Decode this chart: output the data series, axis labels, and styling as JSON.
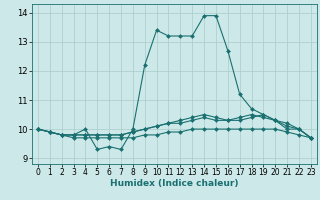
{
  "title": "",
  "xlabel": "Humidex (Indice chaleur)",
  "ylabel": "",
  "bg_color": "#cce8e8",
  "line_color": "#1a7070",
  "grid_color": "#aacccc",
  "xlim": [
    -0.5,
    23.5
  ],
  "ylim": [
    8.8,
    14.3
  ],
  "yticks": [
    9,
    10,
    11,
    12,
    13,
    14
  ],
  "xticks": [
    0,
    1,
    2,
    3,
    4,
    5,
    6,
    7,
    8,
    9,
    10,
    11,
    12,
    13,
    14,
    15,
    16,
    17,
    18,
    19,
    20,
    21,
    22,
    23
  ],
  "series": [
    {
      "x": [
        0,
        1,
        2,
        3,
        4,
        5,
        6,
        7,
        8,
        9,
        10,
        11,
        12,
        13,
        14,
        15,
        16,
        17,
        18,
        19,
        20,
        21,
        22,
        23
      ],
      "y": [
        10.0,
        9.9,
        9.8,
        9.8,
        10.0,
        9.3,
        9.4,
        9.3,
        10.0,
        12.2,
        13.4,
        13.2,
        13.2,
        13.2,
        13.9,
        13.9,
        12.7,
        11.2,
        10.7,
        10.5,
        10.3,
        10.0,
        10.0,
        9.7
      ]
    },
    {
      "x": [
        0,
        1,
        2,
        3,
        4,
        5,
        6,
        7,
        8,
        9,
        10,
        11,
        12,
        13,
        14,
        15,
        16,
        17,
        18,
        19,
        20,
        21,
        22,
        23
      ],
      "y": [
        10.0,
        9.9,
        9.8,
        9.7,
        9.7,
        9.7,
        9.7,
        9.7,
        9.7,
        9.8,
        9.8,
        9.9,
        9.9,
        10.0,
        10.0,
        10.0,
        10.0,
        10.0,
        10.0,
        10.0,
        10.0,
        9.9,
        9.8,
        9.7
      ]
    },
    {
      "x": [
        0,
        1,
        2,
        3,
        4,
        5,
        6,
        7,
        8,
        9,
        10,
        11,
        12,
        13,
        14,
        15,
        16,
        17,
        18,
        19,
        20,
        21,
        22,
        23
      ],
      "y": [
        10.0,
        9.9,
        9.8,
        9.8,
        9.8,
        9.8,
        9.8,
        9.8,
        9.9,
        10.0,
        10.1,
        10.2,
        10.3,
        10.4,
        10.5,
        10.4,
        10.3,
        10.3,
        10.4,
        10.5,
        10.3,
        10.2,
        10.0,
        9.7
      ]
    },
    {
      "x": [
        0,
        1,
        2,
        3,
        4,
        5,
        6,
        7,
        8,
        9,
        10,
        11,
        12,
        13,
        14,
        15,
        16,
        17,
        18,
        19,
        20,
        21,
        22,
        23
      ],
      "y": [
        10.0,
        9.9,
        9.8,
        9.8,
        9.8,
        9.8,
        9.8,
        9.8,
        9.9,
        10.0,
        10.1,
        10.2,
        10.2,
        10.3,
        10.4,
        10.3,
        10.3,
        10.4,
        10.5,
        10.4,
        10.3,
        10.1,
        10.0,
        9.7
      ]
    }
  ],
  "marker": "D",
  "markersize": 2.0,
  "linewidth": 0.8,
  "tick_fontsize": 5.5,
  "xlabel_fontsize": 6.5
}
